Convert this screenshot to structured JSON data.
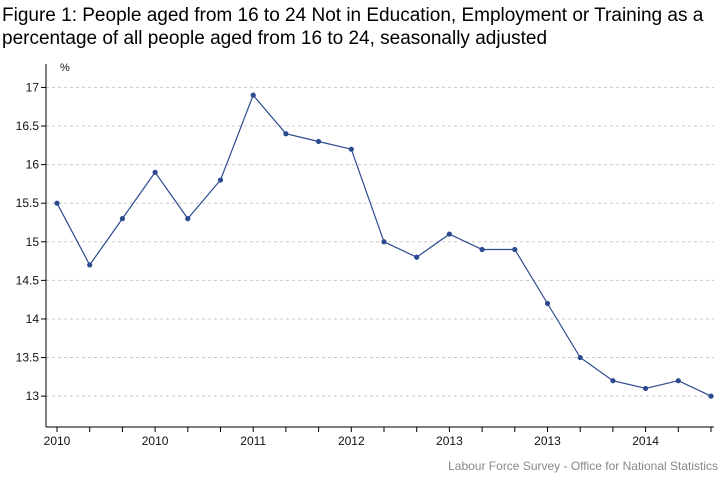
{
  "chart_data": {
    "type": "line",
    "title": "Figure 1: People aged from 16 to 24 Not in Education, Employment or Training as a percentage of all people aged from 16 to 24, seasonally adjusted",
    "ylabel": "%",
    "xlabel": "",
    "source": "Labour Force Survey - Office for National Statistics",
    "ylim": [
      12.6,
      17.2
    ],
    "yticks": [
      13,
      13.5,
      14,
      14.5,
      15,
      15.5,
      16,
      16.5,
      17
    ],
    "xtick_labels": [
      "2010",
      "2010",
      "2011",
      "2012",
      "2013",
      "2013",
      "2014"
    ],
    "grid": "horizontal-dashed",
    "legend": "none",
    "line_color": "#2c4a8f",
    "series": [
      {
        "values": [
          15.5,
          14.7,
          15.3,
          15.9,
          15.3,
          15.8,
          16.9,
          16.4,
          16.3,
          16.2,
          15.0,
          14.8,
          15.1,
          14.9,
          14.9,
          14.2,
          13.5,
          13.2,
          13.1,
          13.2,
          13.0
        ]
      }
    ]
  }
}
